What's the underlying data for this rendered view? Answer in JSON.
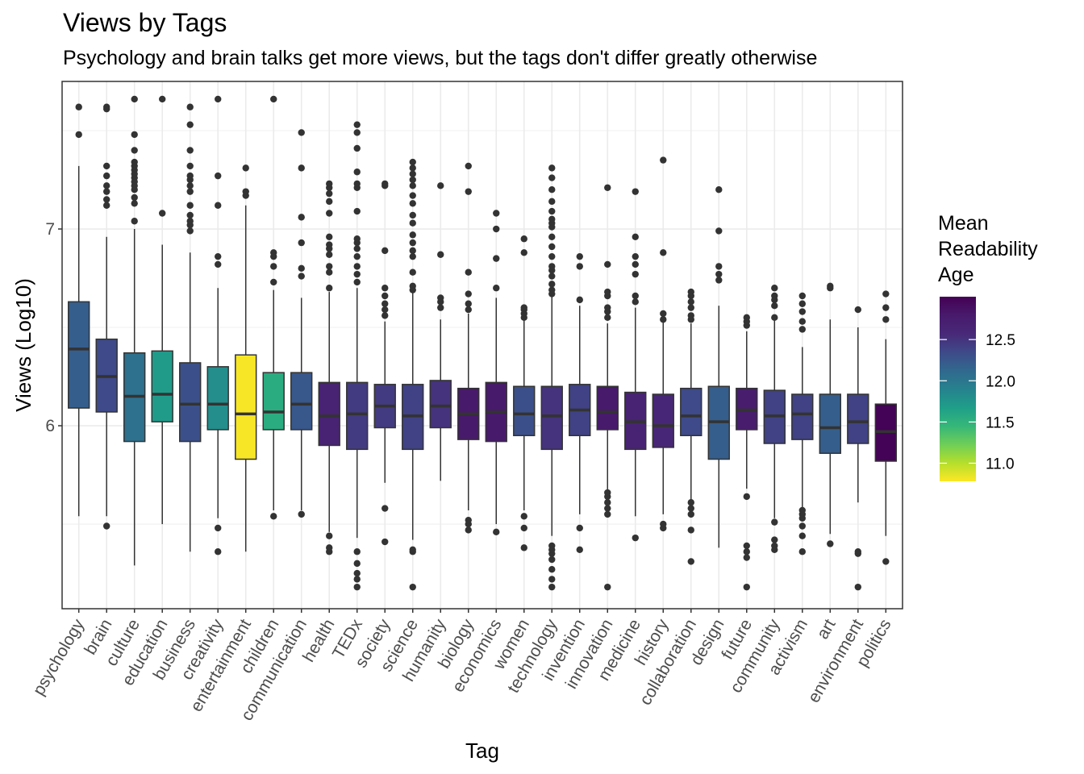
{
  "chart_data": {
    "type": "boxplot",
    "title": "Views by Tags",
    "subtitle": "Psychology and brain talks get more views, but the tags don't differ greatly otherwise",
    "xlabel": "Tag",
    "ylabel": "Views (Log10)",
    "ylim": [
      5.07,
      7.75
    ],
    "y_ticks": [
      6,
      7
    ],
    "grid": true,
    "legend": {
      "title": [
        "Mean",
        "Readability",
        "Age"
      ],
      "position": "right",
      "ticks": [
        11.0,
        11.5,
        12.0,
        12.5
      ],
      "tick_labels": [
        "11.0",
        "11.5",
        "12.0",
        "12.5"
      ],
      "range": [
        10.78,
        13.02
      ],
      "colorscale": "viridis"
    },
    "categories": [
      "psychology",
      "brain",
      "culture",
      "education",
      "business",
      "creativity",
      "entertainment",
      "children",
      "communication",
      "health",
      "TEDx",
      "society",
      "science",
      "humanity",
      "biology",
      "economics",
      "women",
      "technology",
      "invention",
      "innovation",
      "medicine",
      "history",
      "collaboration",
      "design",
      "future",
      "community",
      "activism",
      "art",
      "environment",
      "politics"
    ],
    "boxes": [
      {
        "tag": "psychology",
        "readability": 12.2,
        "q1": 6.09,
        "median": 6.39,
        "q3": 6.63,
        "lower_whisker": 5.54,
        "upper_whisker": 7.32,
        "outliers": [
          7.48,
          7.62
        ]
      },
      {
        "tag": "brain",
        "readability": 12.35,
        "q1": 6.07,
        "median": 6.25,
        "q3": 6.44,
        "lower_whisker": 5.54,
        "upper_whisker": 6.96,
        "outliers": [
          5.49,
          7.12,
          7.15,
          7.19,
          7.22,
          7.27,
          7.32,
          7.61,
          7.62
        ]
      },
      {
        "tag": "culture",
        "readability": 12.05,
        "q1": 5.92,
        "median": 6.15,
        "q3": 6.37,
        "lower_whisker": 5.29,
        "upper_whisker": 7.0,
        "outliers": [
          7.04,
          7.13,
          7.16,
          7.2,
          7.22,
          7.24,
          7.26,
          7.28,
          7.3,
          7.32,
          7.34,
          7.4,
          7.48,
          7.66
        ]
      },
      {
        "tag": "education",
        "readability": 11.7,
        "q1": 6.02,
        "median": 6.16,
        "q3": 6.38,
        "lower_whisker": 5.5,
        "upper_whisker": 6.92,
        "outliers": [
          7.08,
          7.66
        ]
      },
      {
        "tag": "business",
        "readability": 12.3,
        "q1": 5.92,
        "median": 6.11,
        "q3": 6.32,
        "lower_whisker": 5.36,
        "upper_whisker": 6.88,
        "outliers": [
          6.99,
          7.02,
          7.04,
          7.07,
          7.12,
          7.19,
          7.22,
          7.25,
          7.27,
          7.32,
          7.4,
          7.53,
          7.62
        ]
      },
      {
        "tag": "creativity",
        "readability": 11.8,
        "q1": 5.98,
        "median": 6.11,
        "q3": 6.3,
        "lower_whisker": 5.53,
        "upper_whisker": 6.7,
        "outliers": [
          5.36,
          5.48,
          6.82,
          6.86,
          7.12,
          7.27,
          7.66
        ]
      },
      {
        "tag": "entertainment",
        "readability": 10.8,
        "q1": 5.83,
        "median": 6.06,
        "q3": 6.36,
        "lower_whisker": 5.36,
        "upper_whisker": 7.12,
        "outliers": [
          7.17,
          7.19,
          7.31
        ]
      },
      {
        "tag": "children",
        "readability": 11.55,
        "q1": 5.98,
        "median": 6.07,
        "q3": 6.27,
        "lower_whisker": 5.57,
        "upper_whisker": 6.69,
        "outliers": [
          5.54,
          6.73,
          6.81,
          6.86,
          6.88,
          7.66
        ]
      },
      {
        "tag": "communication",
        "readability": 12.25,
        "q1": 5.98,
        "median": 6.11,
        "q3": 6.27,
        "lower_whisker": 5.57,
        "upper_whisker": 6.65,
        "outliers": [
          5.55,
          6.76,
          6.8,
          6.93,
          7.06,
          7.31,
          7.49
        ]
      },
      {
        "tag": "health",
        "readability": 12.65,
        "q1": 5.9,
        "median": 6.05,
        "q3": 6.22,
        "lower_whisker": 5.46,
        "upper_whisker": 6.68,
        "outliers": [
          5.36,
          5.38,
          5.44,
          6.7,
          6.78,
          6.81,
          6.87,
          6.9,
          6.92,
          6.96,
          7.08,
          7.14,
          7.18,
          7.21,
          7.23
        ]
      },
      {
        "tag": "TEDx",
        "readability": 12.45,
        "q1": 5.88,
        "median": 6.06,
        "q3": 6.22,
        "lower_whisker": 5.43,
        "upper_whisker": 6.7,
        "outliers": [
          5.18,
          5.22,
          5.25,
          5.3,
          5.36,
          6.73,
          6.77,
          6.81,
          6.86,
          6.9,
          6.93,
          6.95,
          7.09,
          7.21,
          7.23,
          7.29,
          7.41,
          7.49,
          7.53
        ]
      },
      {
        "tag": "society",
        "readability": 12.45,
        "q1": 5.99,
        "median": 6.1,
        "q3": 6.21,
        "lower_whisker": 5.71,
        "upper_whisker": 6.53,
        "outliers": [
          5.41,
          5.58,
          6.56,
          6.59,
          6.62,
          6.66,
          6.7,
          6.89,
          7.22,
          7.23
        ]
      },
      {
        "tag": "science",
        "readability": 12.4,
        "q1": 5.88,
        "median": 6.05,
        "q3": 6.21,
        "lower_whisker": 5.42,
        "upper_whisker": 6.69,
        "outliers": [
          5.18,
          5.36,
          5.37,
          6.69,
          6.71,
          6.78,
          6.86,
          6.89,
          6.93,
          6.97,
          7.03,
          7.07,
          7.13,
          7.17,
          7.22,
          7.25,
          7.28,
          7.31,
          7.34
        ]
      },
      {
        "tag": "humanity",
        "readability": 12.5,
        "q1": 5.99,
        "median": 6.1,
        "q3": 6.23,
        "lower_whisker": 5.72,
        "upper_whisker": 6.54,
        "outliers": [
          6.6,
          6.63,
          6.65,
          6.87,
          7.22
        ]
      },
      {
        "tag": "biology",
        "readability": 12.8,
        "q1": 5.93,
        "median": 6.06,
        "q3": 6.19,
        "lower_whisker": 5.57,
        "upper_whisker": 6.57,
        "outliers": [
          5.47,
          5.5,
          5.52,
          6.59,
          6.62,
          6.67,
          6.78,
          7.19,
          7.32
        ]
      },
      {
        "tag": "economics",
        "readability": 12.8,
        "q1": 5.92,
        "median": 6.07,
        "q3": 6.22,
        "lower_whisker": 5.5,
        "upper_whisker": 6.65,
        "outliers": [
          5.46,
          6.7,
          6.85,
          7.0,
          7.08
        ]
      },
      {
        "tag": "women",
        "readability": 12.3,
        "q1": 5.95,
        "median": 6.06,
        "q3": 6.2,
        "lower_whisker": 5.57,
        "upper_whisker": 6.54,
        "outliers": [
          5.38,
          5.48,
          5.54,
          6.55,
          6.57,
          6.59,
          6.6,
          6.88,
          6.95
        ]
      },
      {
        "tag": "technology",
        "readability": 12.5,
        "q1": 5.88,
        "median": 6.05,
        "q3": 6.2,
        "lower_whisker": 5.44,
        "upper_whisker": 6.66,
        "outliers": [
          5.18,
          5.22,
          5.27,
          5.32,
          5.35,
          5.37,
          5.39,
          6.67,
          6.69,
          6.72,
          6.76,
          6.79,
          6.81,
          6.86,
          6.91,
          6.96,
          7.01,
          7.03,
          7.05,
          7.09,
          7.14,
          7.2,
          7.26,
          7.31
        ]
      },
      {
        "tag": "invention",
        "readability": 12.4,
        "q1": 5.95,
        "median": 6.08,
        "q3": 6.21,
        "lower_whisker": 5.55,
        "upper_whisker": 6.61,
        "outliers": [
          5.37,
          5.48,
          6.64,
          6.81,
          6.86
        ]
      },
      {
        "tag": "innovation",
        "readability": 12.8,
        "q1": 5.98,
        "median": 6.07,
        "q3": 6.2,
        "lower_whisker": 5.67,
        "upper_whisker": 6.52,
        "outliers": [
          5.18,
          5.55,
          5.58,
          5.61,
          5.64,
          5.66,
          6.55,
          6.58,
          6.6,
          6.66,
          6.68,
          6.82,
          7.21
        ]
      },
      {
        "tag": "medicine",
        "readability": 12.65,
        "q1": 5.88,
        "median": 6.02,
        "q3": 6.17,
        "lower_whisker": 5.54,
        "upper_whisker": 6.6,
        "outliers": [
          5.43,
          6.63,
          6.66,
          6.77,
          6.82,
          6.86,
          6.96,
          7.19
        ]
      },
      {
        "tag": "history",
        "readability": 12.6,
        "q1": 5.89,
        "median": 6.0,
        "q3": 6.16,
        "lower_whisker": 5.55,
        "upper_whisker": 6.53,
        "outliers": [
          5.48,
          5.5,
          6.54,
          6.57,
          6.88,
          7.35
        ]
      },
      {
        "tag": "collaboration",
        "readability": 12.35,
        "q1": 5.95,
        "median": 6.05,
        "q3": 6.19,
        "lower_whisker": 5.62,
        "upper_whisker": 6.52,
        "outliers": [
          5.31,
          5.47,
          5.55,
          5.58,
          5.61,
          6.54,
          6.56,
          6.6,
          6.63,
          6.66,
          6.68
        ]
      },
      {
        "tag": "design",
        "readability": 12.2,
        "q1": 5.83,
        "median": 6.02,
        "q3": 6.2,
        "lower_whisker": 5.38,
        "upper_whisker": 6.61,
        "outliers": [
          6.74,
          6.77,
          6.81,
          6.99,
          7.2
        ]
      },
      {
        "tag": "future",
        "readability": 12.75,
        "q1": 5.98,
        "median": 6.08,
        "q3": 6.19,
        "lower_whisker": 5.68,
        "upper_whisker": 6.48,
        "outliers": [
          5.18,
          5.33,
          5.36,
          5.39,
          5.64,
          6.51,
          6.53,
          6.55
        ]
      },
      {
        "tag": "community",
        "readability": 12.4,
        "q1": 5.91,
        "median": 6.05,
        "q3": 6.18,
        "lower_whisker": 5.53,
        "upper_whisker": 6.54,
        "outliers": [
          5.37,
          5.39,
          5.42,
          5.51,
          6.55,
          6.61,
          6.64,
          6.66,
          6.7
        ]
      },
      {
        "tag": "activism",
        "readability": 12.4,
        "q1": 5.93,
        "median": 6.06,
        "q3": 6.16,
        "lower_whisker": 5.58,
        "upper_whisker": 6.4,
        "outliers": [
          5.36,
          5.44,
          5.49,
          5.53,
          5.55,
          5.57,
          6.49,
          6.53,
          6.58,
          6.62,
          6.66
        ]
      },
      {
        "tag": "art",
        "readability": 12.2,
        "q1": 5.86,
        "median": 5.99,
        "q3": 6.16,
        "lower_whisker": 5.45,
        "upper_whisker": 6.54,
        "outliers": [
          5.4,
          6.7,
          6.71
        ]
      },
      {
        "tag": "environment",
        "readability": 12.4,
        "q1": 5.91,
        "median": 6.02,
        "q3": 6.16,
        "lower_whisker": 5.61,
        "upper_whisker": 6.5,
        "outliers": [
          5.18,
          5.35,
          5.36,
          6.59
        ]
      },
      {
        "tag": "politics",
        "readability": 13.0,
        "q1": 5.82,
        "median": 5.97,
        "q3": 6.11,
        "lower_whisker": 5.44,
        "upper_whisker": 6.44,
        "outliers": [
          5.31,
          6.54,
          6.6,
          6.67
        ]
      }
    ]
  }
}
